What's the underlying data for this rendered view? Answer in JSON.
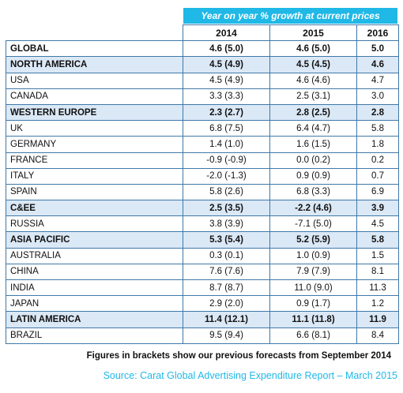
{
  "header": {
    "title": "Year on year % growth at current prices"
  },
  "columns": [
    "2014",
    "2015",
    "2016"
  ],
  "rows": [
    {
      "name": "GLOBAL",
      "y2014": "4.6 (5.0)",
      "y2015": "4.6 (5.0)",
      "y2016": "5.0",
      "region": true,
      "global": true
    },
    {
      "name": "NORTH AMERICA",
      "y2014": "4.5 (4.9)",
      "y2015": "4.5 (4.5)",
      "y2016": "4.6",
      "region": true
    },
    {
      "name": "USA",
      "y2014": "4.5 (4.9)",
      "y2015": "4.6 (4.6)",
      "y2016": "4.7"
    },
    {
      "name": "CANADA",
      "y2014": "3.3 (3.3)",
      "y2015": "2.5 (3.1)",
      "y2016": "3.0"
    },
    {
      "name": "WESTERN EUROPE",
      "y2014": "2.3 (2.7)",
      "y2015": "2.8 (2.5)",
      "y2016": "2.8",
      "region": true
    },
    {
      "name": "UK",
      "y2014": "6.8 (7.5)",
      "y2015": "6.4 (4.7)",
      "y2016": "5.8"
    },
    {
      "name": "GERMANY",
      "y2014": "1.4 (1.0)",
      "y2015": "1.6 (1.5)",
      "y2016": "1.8"
    },
    {
      "name": "FRANCE",
      "y2014": "-0.9 (-0.9)",
      "y2015": "0.0 (0.2)",
      "y2016": "0.2"
    },
    {
      "name": "ITALY",
      "y2014": "-2.0 (-1.3)",
      "y2015": "0.9 (0.9)",
      "y2016": "0.7"
    },
    {
      "name": "SPAIN",
      "y2014": "5.8 (2.6)",
      "y2015": "6.8 (3.3)",
      "y2016": "6.9"
    },
    {
      "name": "C&EE",
      "y2014": "2.5 (3.5)",
      "y2015": "-2.2 (4.6)",
      "y2016": "3.9",
      "region": true
    },
    {
      "name": "RUSSIA",
      "y2014": "3.8 (3.9)",
      "y2015": "-7.1 (5.0)",
      "y2016": "4.5"
    },
    {
      "name": "ASIA PACIFIC",
      "y2014": "5.3 (5.4)",
      "y2015": "5.2 (5.9)",
      "y2016": "5.8",
      "region": true
    },
    {
      "name": "AUSTRALIA",
      "y2014": "0.3 (0.1)",
      "y2015": "1.0 (0.9)",
      "y2016": "1.5"
    },
    {
      "name": "CHINA",
      "y2014": "7.6 (7.6)",
      "y2015": "7.9 (7.9)",
      "y2016": "8.1"
    },
    {
      "name": "INDIA",
      "y2014": "8.7 (8.7)",
      "y2015": "11.0 (9.0)",
      "y2016": "11.3"
    },
    {
      "name": "JAPAN",
      "y2014": "2.9 (2.0)",
      "y2015": "0.9 (1.7)",
      "y2016": "1.2"
    },
    {
      "name": "LATIN AMERICA",
      "y2014": "11.4 (12.1)",
      "y2015": "11.1 (11.8)",
      "y2016": "11.9",
      "region": true
    },
    {
      "name": "BRAZIL",
      "y2014": "9.5 (9.4)",
      "y2015": "6.6 (8.1)",
      "y2016": "8.4"
    }
  ],
  "footnote": "Figures in brackets show our previous forecasts from September 2014",
  "source": "Source: Carat Global Advertising Expenditure Report – March 2015",
  "colors": {
    "accent": "#20b8e6",
    "region_fill": "#dbe8f6",
    "border": "#3f78a8"
  }
}
